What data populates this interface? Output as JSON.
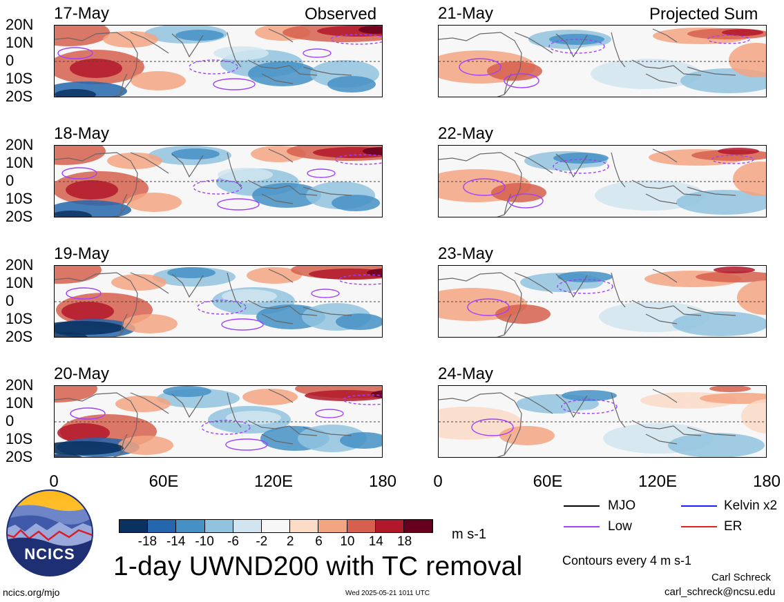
{
  "header": {
    "left_tag": "Observed",
    "right_tag": "Projected Sum"
  },
  "panels": {
    "left": [
      "17-May",
      "18-May",
      "19-May",
      "20-May"
    ],
    "right": [
      "21-May",
      "22-May",
      "23-May",
      "24-May"
    ]
  },
  "axes": {
    "lat_labels": [
      "20N",
      "10N",
      "0",
      "10S",
      "20S"
    ],
    "lon_labels": [
      "0",
      "60E",
      "120E",
      "180"
    ]
  },
  "colorbar": {
    "ticks": [
      "-18",
      "-14",
      "-10",
      "-6",
      "-2",
      "2",
      "6",
      "10",
      "14",
      "18"
    ],
    "colors": [
      "#0a3260",
      "#2466ad",
      "#4590c5",
      "#91c3de",
      "#d1e5f0",
      "#f7f7f7",
      "#fcdbc7",
      "#f3a481",
      "#d6604d",
      "#b2182b",
      "#67001f"
    ],
    "unit": "m s-1"
  },
  "legend": {
    "items": [
      {
        "label": "MJO",
        "color": "#000000"
      },
      {
        "label": "Kelvin x2",
        "color": "#1a1aff"
      },
      {
        "label": "Low",
        "color": "#a040ff"
      },
      {
        "label": "ER",
        "color": "#e02020"
      }
    ],
    "contour_note": "Contours every 4 m s-1"
  },
  "title": "1-day UWND200 with TC removal",
  "logo": {
    "text": "NCICS"
  },
  "footer": {
    "url": "ncics.org/mjo",
    "timestamp": "Wed 2025-05-21 1011 UTC",
    "author": "Carl Schreck",
    "email": "carl_schreck@ncsu.edu"
  },
  "chart_data": {
    "type": "heatmap",
    "variable": "UWND200",
    "units": "m s-1",
    "x": {
      "range": [
        0,
        180
      ],
      "ticks": [
        "0",
        "60E",
        "120E",
        "180"
      ]
    },
    "y": {
      "range": [
        -20,
        20
      ],
      "ticks": [
        "20N",
        "10N",
        "0",
        "10S",
        "20S"
      ]
    },
    "color_levels": [
      -18,
      -14,
      -10,
      -6,
      -2,
      2,
      6,
      10,
      14,
      18
    ],
    "left_column": "Observed",
    "right_column": "Projected Sum",
    "dates": [
      "17-May",
      "18-May",
      "19-May",
      "20-May",
      "21-May",
      "22-May",
      "23-May",
      "24-May"
    ]
  }
}
